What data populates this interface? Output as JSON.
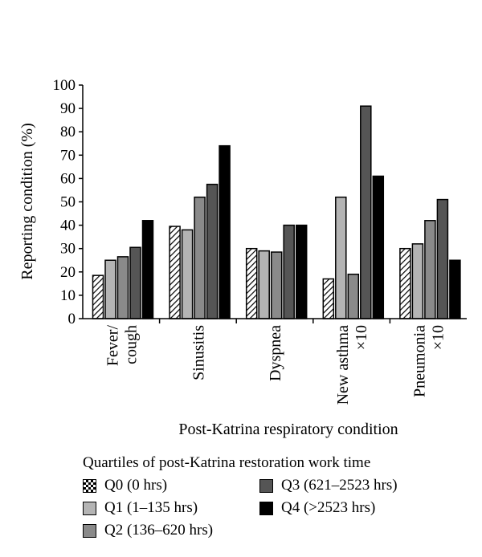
{
  "colors": {
    "q0": "pattern-hatch",
    "q1": "#b4b4b4",
    "q2": "#8a8a8a",
    "q3": "#555555",
    "q4": "#000000"
  },
  "chart_data": {
    "type": "bar",
    "categories": [
      [
        "Fever/",
        "cough"
      ],
      [
        "Sinusitis"
      ],
      [
        "Dyspnea"
      ],
      [
        "New asthma",
        "×10"
      ],
      [
        "Pneumonia",
        "×10"
      ]
    ],
    "series": [
      {
        "name": "Q0 (0 hrs)",
        "values": [
          18.5,
          39.5,
          30,
          17,
          30
        ]
      },
      {
        "name": "Q1 (1–135 hrs)",
        "values": [
          25,
          38,
          29,
          52,
          32
        ]
      },
      {
        "name": "Q2 (136–620 hrs)",
        "values": [
          26.5,
          52,
          28.5,
          19,
          42
        ]
      },
      {
        "name": "Q3 (621–2523 hrs)",
        "values": [
          30.5,
          57.5,
          40,
          91,
          51
        ]
      },
      {
        "name": "Q4 (>2523 hrs)",
        "values": [
          42,
          74,
          40,
          61,
          25
        ]
      }
    ],
    "ylim": [
      0,
      100
    ],
    "yticks": [
      0,
      10,
      20,
      30,
      40,
      50,
      60,
      70,
      80,
      90,
      100
    ],
    "ylabel": "Reporting condition (%)",
    "xlabel": "Post-Katrina respiratory condition",
    "legend_title": "Quartiles of post-Katrina restoration work time",
    "legend_placement": "bottom",
    "grid": false
  }
}
